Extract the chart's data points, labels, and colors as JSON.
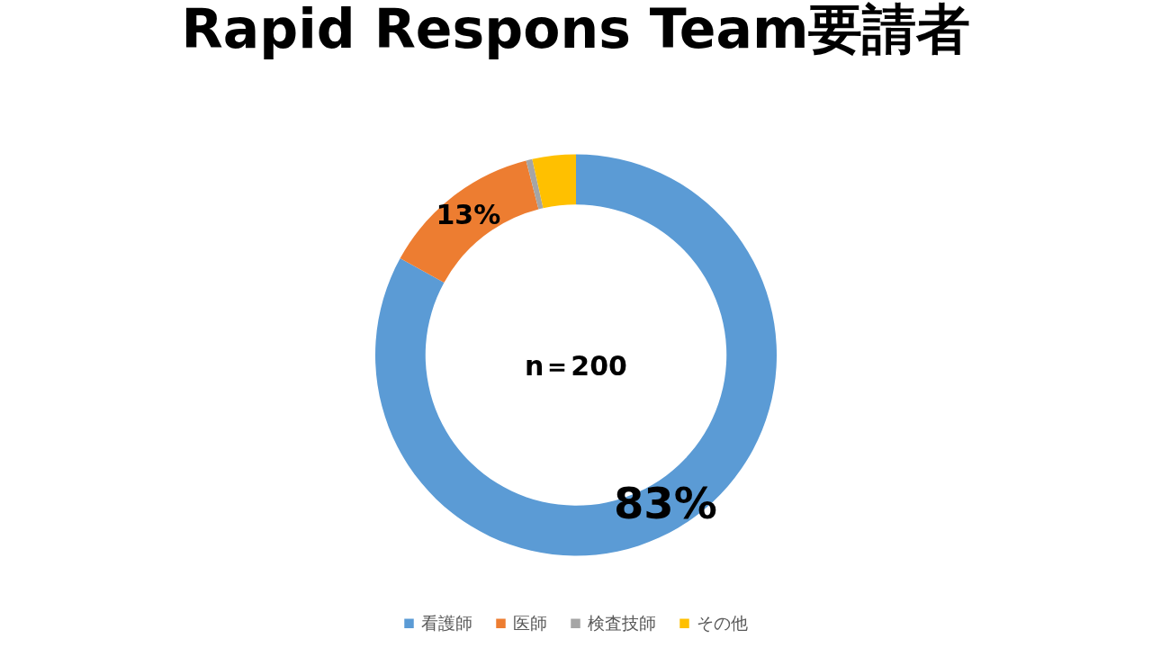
{
  "chart_data": {
    "type": "donut",
    "title": "Rapid Respons Team要請者",
    "categories": [
      "看護師",
      "医師",
      "検査技師",
      "その他"
    ],
    "values": [
      83,
      13,
      0.5,
      3.5
    ],
    "colors": [
      "#5b9bd5",
      "#ed7d31",
      "#a5a5a5",
      "#ffc000"
    ],
    "value_labels": [
      "83%",
      "13%",
      null,
      null
    ],
    "annotations": [
      "n＝200"
    ],
    "legend": "bottom"
  }
}
